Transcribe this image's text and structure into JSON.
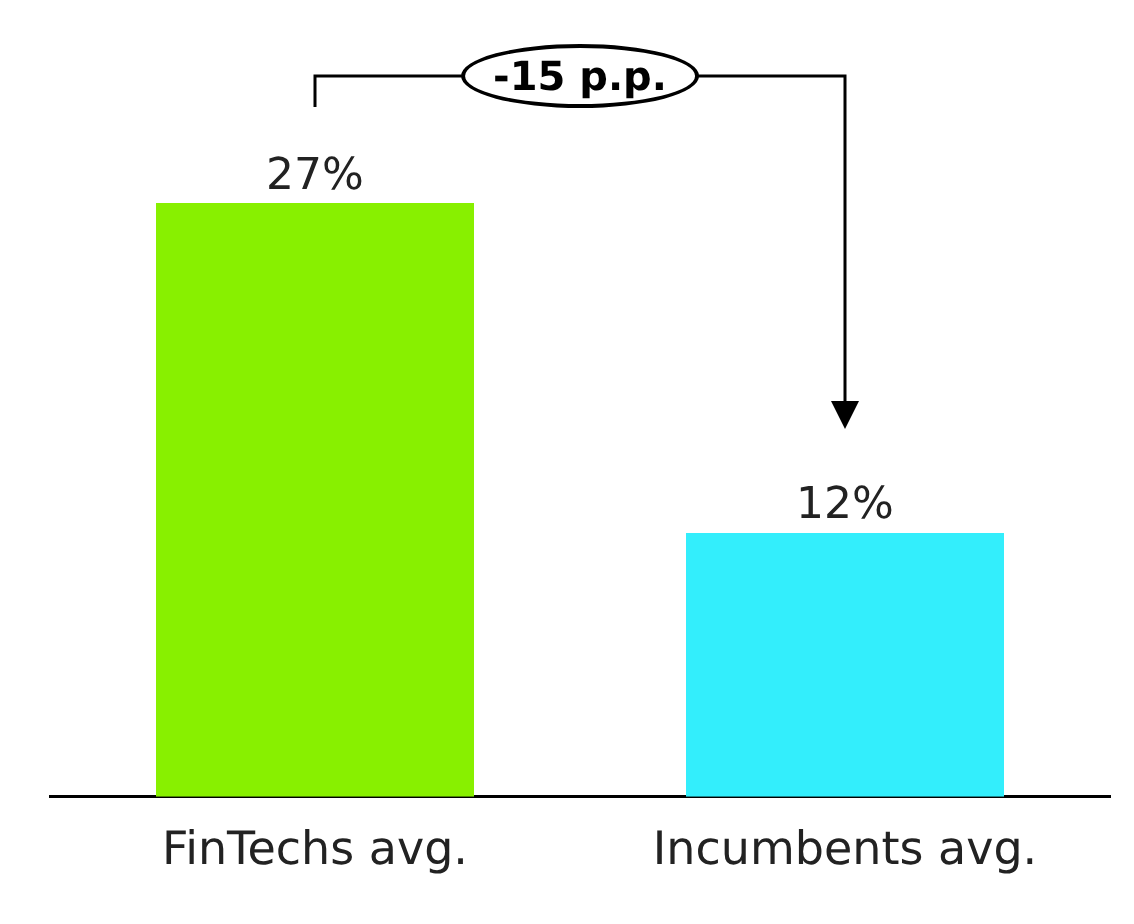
{
  "chart_data": {
    "type": "bar",
    "categories": [
      "FinTechs avg.",
      "Incumbents avg."
    ],
    "values": [
      27,
      12
    ],
    "colors": [
      "#88f000",
      "#33eefc"
    ],
    "value_labels": [
      "27%",
      "12%"
    ],
    "tick_labels": "x",
    "annotations": [
      "-15 p.p."
    ],
    "grid": false,
    "legend": false
  }
}
